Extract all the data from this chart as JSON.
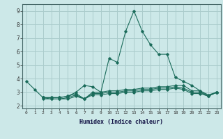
{
  "title": "",
  "xlabel": "Humidex (Indice chaleur)",
  "background_color": "#cce8e8",
  "grid_color": "#aacccc",
  "line_color": "#1a6b5a",
  "xlim": [
    -0.5,
    23.5
  ],
  "ylim": [
    1.8,
    9.5
  ],
  "yticks": [
    2,
    3,
    4,
    5,
    6,
    7,
    8,
    9
  ],
  "xticks": [
    0,
    1,
    2,
    3,
    4,
    5,
    6,
    7,
    8,
    9,
    10,
    11,
    12,
    13,
    14,
    15,
    16,
    17,
    18,
    19,
    20,
    21,
    22,
    23
  ],
  "series": [
    {
      "x": [
        0,
        1,
        2,
        3,
        4,
        5,
        6,
        7,
        8,
        9,
        10,
        11,
        12,
        13,
        14,
        15,
        16,
        17,
        18,
        19,
        20,
        21,
        22,
        23
      ],
      "y": [
        3.8,
        3.2,
        2.6,
        2.6,
        2.6,
        2.7,
        3.0,
        3.5,
        3.4,
        3.0,
        5.5,
        5.2,
        7.5,
        9.0,
        7.5,
        6.5,
        5.8,
        5.8,
        4.1,
        3.8,
        3.5,
        3.1,
        2.8,
        3.0
      ]
    },
    {
      "x": [
        2,
        3,
        4,
        5,
        6,
        7,
        8,
        9,
        10,
        11,
        12,
        13,
        14,
        15,
        16,
        17,
        18,
        19,
        20,
        21,
        22,
        23
      ],
      "y": [
        2.6,
        2.6,
        2.6,
        2.7,
        2.9,
        2.5,
        3.0,
        3.0,
        3.1,
        3.1,
        3.2,
        3.2,
        3.3,
        3.3,
        3.4,
        3.4,
        3.5,
        3.5,
        3.1,
        3.1,
        2.7,
        3.0
      ]
    },
    {
      "x": [
        2,
        3,
        4,
        5,
        6,
        7,
        8,
        9,
        10,
        11,
        12,
        13,
        14,
        15,
        16,
        17,
        18,
        19,
        20,
        21,
        22,
        23
      ],
      "y": [
        2.6,
        2.5,
        2.5,
        2.6,
        2.8,
        2.5,
        2.9,
        2.9,
        3.0,
        3.0,
        3.1,
        3.1,
        3.2,
        3.2,
        3.3,
        3.3,
        3.4,
        3.3,
        3.0,
        3.0,
        2.7,
        3.0
      ]
    },
    {
      "x": [
        2,
        3,
        4,
        5,
        6,
        7,
        8,
        9,
        10,
        11,
        12,
        13,
        14,
        15,
        16,
        17,
        18,
        19,
        20,
        21,
        22,
        23
      ],
      "y": [
        2.5,
        2.5,
        2.5,
        2.5,
        2.7,
        2.5,
        2.8,
        2.8,
        2.9,
        2.9,
        3.0,
        3.0,
        3.1,
        3.1,
        3.2,
        3.2,
        3.3,
        3.2,
        2.9,
        2.9,
        2.7,
        3.0
      ]
    }
  ]
}
